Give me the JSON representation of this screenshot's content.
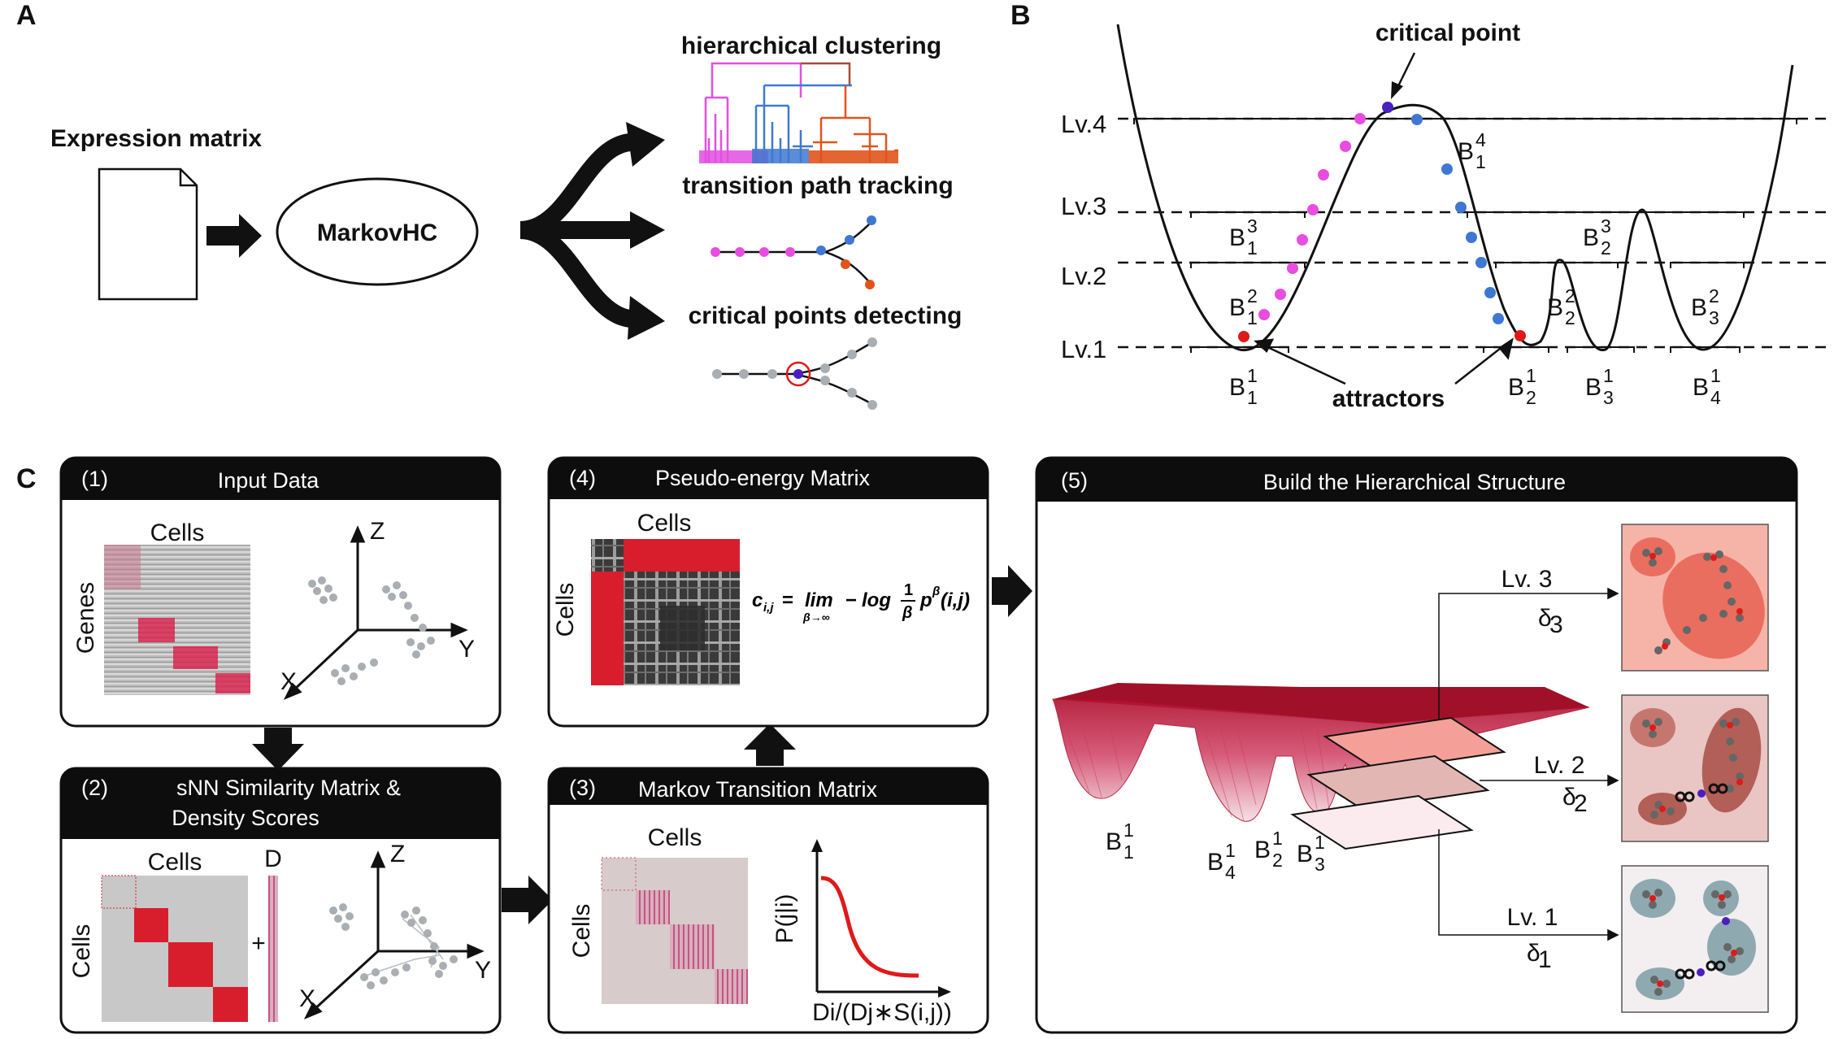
{
  "panel_labels": {
    "a": "A",
    "b": "B",
    "c": "C"
  },
  "panel_a": {
    "input_label": "Expression matrix",
    "method_label": "MarkovHC",
    "outputs": [
      {
        "label": "hierarchical clustering"
      },
      {
        "label": "transition path tracking"
      },
      {
        "label": "critical points detecting"
      }
    ]
  },
  "panel_b": {
    "critical_point_label": "critical point",
    "attractors_label": "attractors",
    "levels": [
      "Lv.4",
      "Lv.3",
      "Lv.2",
      "Lv.1"
    ],
    "basins": [
      {
        "base": "B",
        "sup": "4",
        "sub": "1"
      },
      {
        "base": "B",
        "sup": "3",
        "sub": "1"
      },
      {
        "base": "B",
        "sup": "3",
        "sub": "2"
      },
      {
        "base": "B",
        "sup": "2",
        "sub": "1"
      },
      {
        "base": "B",
        "sup": "2",
        "sub": "2"
      },
      {
        "base": "B",
        "sup": "2",
        "sub": "3"
      },
      {
        "base": "B",
        "sup": "1",
        "sub": "1"
      },
      {
        "base": "B",
        "sup": "1",
        "sub": "2"
      },
      {
        "base": "B",
        "sup": "1",
        "sub": "3"
      },
      {
        "base": "B",
        "sup": "1",
        "sub": "4"
      }
    ],
    "colors": {
      "pink": "#e84de0",
      "blue": "#3f78d1",
      "red": "#e01919",
      "purple": "#4a1fc0"
    }
  },
  "panel_c": {
    "step1": {
      "num": "(1)",
      "title": "Input Data",
      "cells": "Cells",
      "genes": "Genes",
      "axis_x": "X",
      "axis_y": "Y",
      "axis_z": "Z"
    },
    "step2": {
      "num": "(2)",
      "title_line1": "sNN Similarity Matrix &",
      "title_line2": "Density Scores",
      "cells_top": "Cells",
      "cells_side": "Cells",
      "d_label": "D",
      "plus": "+",
      "axis_x": "X",
      "axis_y": "Y",
      "axis_z": "Z"
    },
    "step3": {
      "num": "(3)",
      "title": "Markov Transition Matrix",
      "cells_top": "Cells",
      "cells_side": "Cells",
      "ylabel": "P(j|i)",
      "xlabel": "Di/(Dj∗S(i,j))"
    },
    "step4": {
      "num": "(4)",
      "title": "Pseudo-energy Matrix",
      "cells_top": "Cells",
      "cells_side": "Cells",
      "formula": {
        "lhs": "c",
        "lhs_sub": "i,j",
        "eq": "=",
        "lim": "lim",
        "lim_sub": "β→∞",
        "minus": "−",
        "log": "log",
        "frac_num": "1",
        "frac_den": "β",
        "p": "p",
        "p_sup": "β",
        "args": "(i,j)"
      }
    },
    "step5": {
      "num": "(5)",
      "title": "Build the Hierarchical Structure",
      "levels": [
        {
          "name": "Lv. 3",
          "delta": "δ",
          "delta_sub": "3"
        },
        {
          "name": "Lv. 2",
          "delta": "δ",
          "delta_sub": "2"
        },
        {
          "name": "Lv. 1",
          "delta": "δ",
          "delta_sub": "1"
        }
      ],
      "basins": [
        {
          "base": "B",
          "sup": "1",
          "sub": "1"
        },
        {
          "base": "B",
          "sup": "1",
          "sub": "4"
        },
        {
          "base": "B",
          "sup": "1",
          "sub": "2"
        },
        {
          "base": "B",
          "sup": "1",
          "sub": "3"
        }
      ]
    },
    "colors": {
      "header_bg": "#0d0d0d",
      "matrix_red": "#d81e2d",
      "matrix_bg": "#c8c8c8",
      "grey_dot": "#a9aeb2"
    }
  }
}
